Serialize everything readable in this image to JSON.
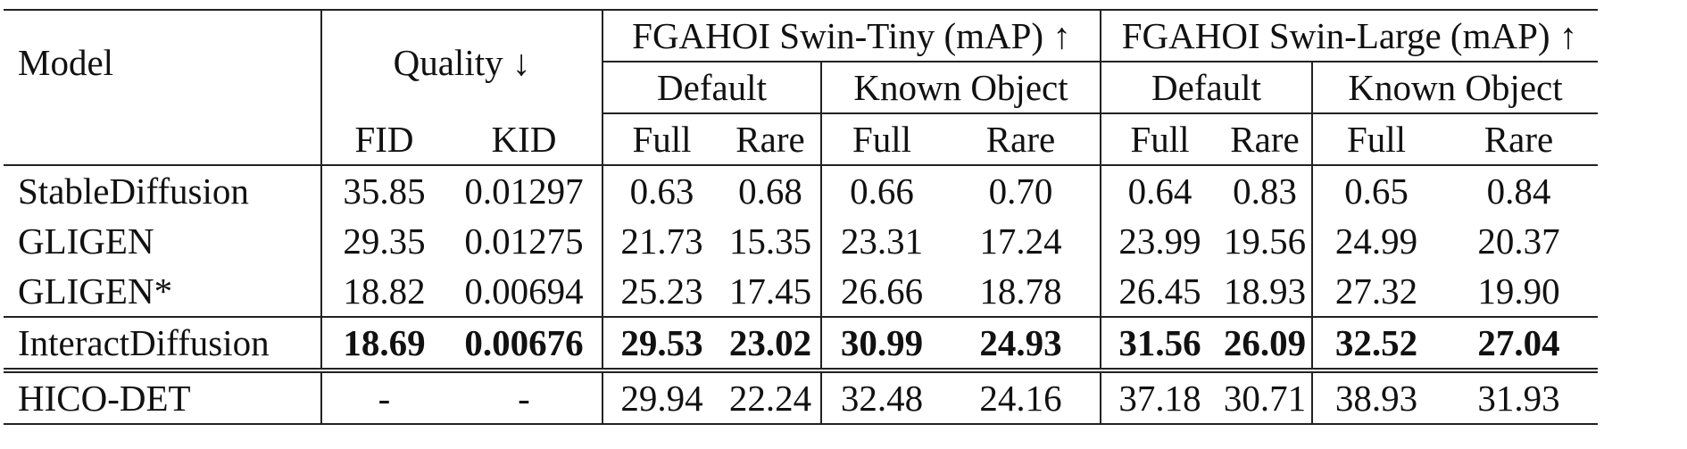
{
  "header": {
    "model_label": "Model",
    "quality_label": "Quality ↓",
    "tiny_label": "FGAHOI Swin-Tiny (mAP) ↑",
    "large_label": "FGAHOI Swin-Large (mAP) ↑",
    "default_label": "Default",
    "known_object_label": "Known Object",
    "columns": [
      "FID",
      "KID",
      "Full",
      "Rare",
      "Full",
      "Rare",
      "Full",
      "Rare",
      "Full",
      "Rare"
    ]
  },
  "rows": [
    {
      "model": "StableDiffusion",
      "values": [
        "35.85",
        "0.01297",
        "0.63",
        "0.68",
        "0.66",
        "0.70",
        "0.64",
        "0.83",
        "0.65",
        "0.84"
      ]
    },
    {
      "model": "GLIGEN",
      "values": [
        "29.35",
        "0.01275",
        "21.73",
        "15.35",
        "23.31",
        "17.24",
        "23.99",
        "19.56",
        "24.99",
        "20.37"
      ]
    },
    {
      "model": "GLIGEN*",
      "values": [
        "18.82",
        "0.00694",
        "25.23",
        "17.45",
        "26.66",
        "18.78",
        "26.45",
        "18.93",
        "27.32",
        "19.90"
      ]
    },
    {
      "model": "InteractDiffusion",
      "values": [
        "18.69",
        "0.00676",
        "29.53",
        "23.02",
        "30.99",
        "24.93",
        "31.56",
        "26.09",
        "32.52",
        "27.04"
      ]
    },
    {
      "model": "HICO-DET",
      "values": [
        "-",
        "-",
        "29.94",
        "22.24",
        "32.48",
        "24.16",
        "37.18",
        "30.71",
        "38.93",
        "31.93"
      ]
    }
  ]
}
